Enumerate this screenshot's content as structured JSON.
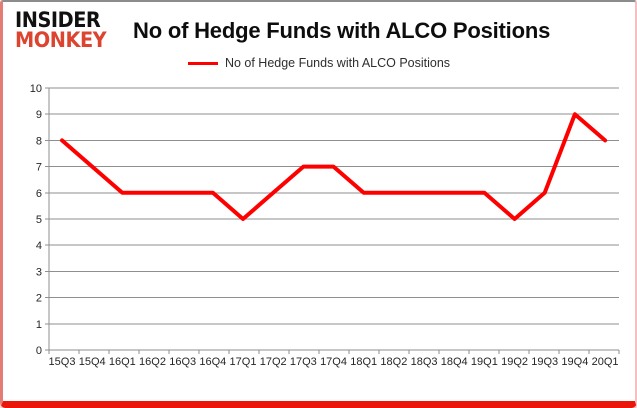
{
  "logo": {
    "line1": "INSIDER",
    "line2": "MONKEY"
  },
  "header": {
    "title": "No of Hedge Funds with ALCO Positions"
  },
  "legend": {
    "label": "No of Hedge Funds with ALCO Positions"
  },
  "colors": {
    "line_red": "#fe0000",
    "monkey_red": "#dd4430",
    "border_red": "#ec1509",
    "grid_gray": "#8f8f8f",
    "label_gray": "#262626"
  },
  "chart_data": {
    "type": "line",
    "title": "No of Hedge Funds with ALCO Positions",
    "legend": "No of Hedge Funds with ALCO Positions",
    "categories": [
      "15Q3",
      "15Q4",
      "16Q1",
      "16Q2",
      "16Q3",
      "16Q4",
      "17Q1",
      "17Q2",
      "17Q3",
      "17Q4",
      "18Q1",
      "18Q2",
      "18Q3",
      "18Q4",
      "19Q1",
      "19Q2",
      "19Q3",
      "19Q4",
      "20Q1"
    ],
    "series": [
      {
        "name": "No of Hedge Funds with ALCO Positions",
        "color": "#fe0000",
        "values": [
          8,
          7,
          6,
          6,
          6,
          6,
          5,
          6,
          7,
          7,
          6,
          6,
          6,
          6,
          6,
          5,
          6,
          9,
          8
        ]
      }
    ],
    "xlabel": "",
    "ylabel": "",
    "ylim": [
      0,
      10
    ],
    "ytick_step": 1,
    "grid": true,
    "legend_position": "top"
  }
}
